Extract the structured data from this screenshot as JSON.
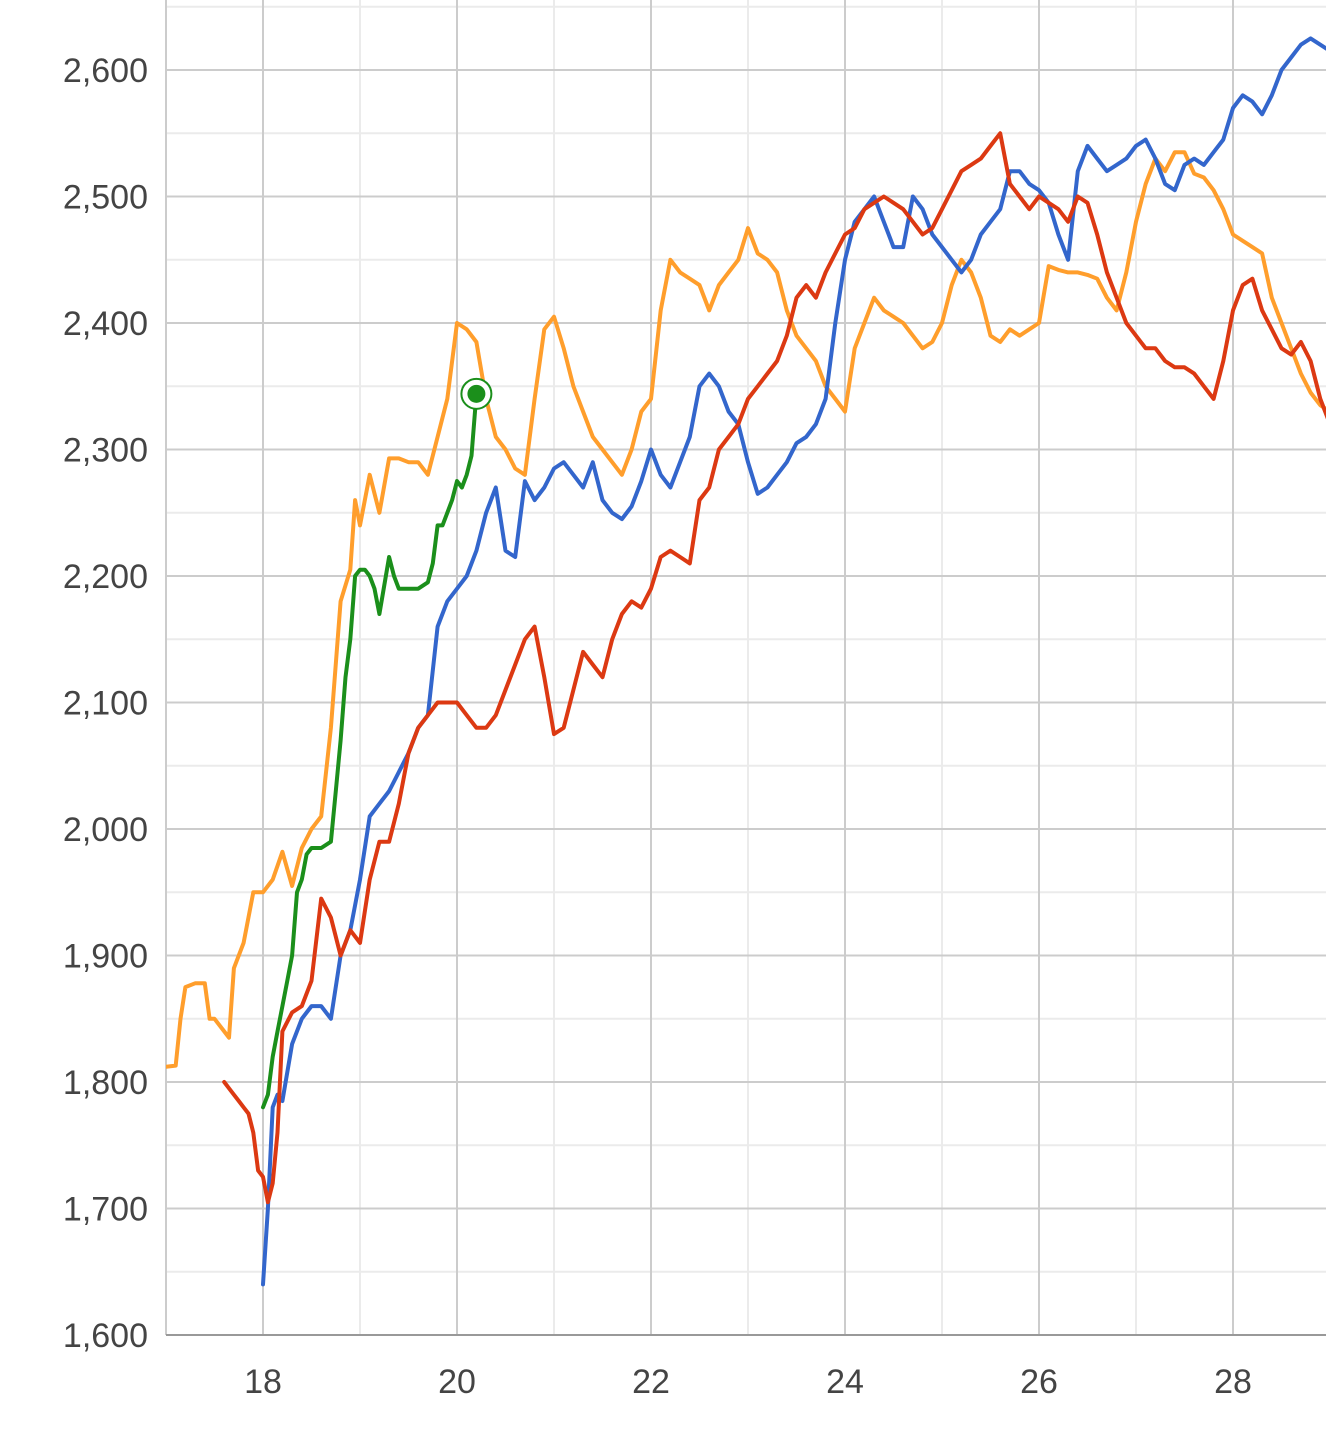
{
  "chart_data": {
    "type": "line",
    "title": "",
    "xlabel": "",
    "ylabel": "",
    "xlim": [
      17,
      29
    ],
    "ylim": [
      1600,
      2650
    ],
    "x_ticks": [
      18,
      20,
      22,
      24,
      26,
      28
    ],
    "x_tick_labels": [
      "18",
      "20",
      "22",
      "24",
      "26",
      "28"
    ],
    "y_ticks": [
      1600,
      1700,
      1800,
      1900,
      2000,
      2100,
      2200,
      2300,
      2400,
      2500,
      2600
    ],
    "y_tick_labels": [
      "1,600",
      "1,700",
      "1,800",
      "1,900",
      "2,000",
      "2,100",
      "2,200",
      "2,300",
      "2,400",
      "2,500",
      "2,600"
    ],
    "grid": true,
    "legend": "none",
    "series": [
      {
        "color": "#ff9e2c",
        "x": [
          17.0,
          17.1,
          17.15,
          17.2,
          17.3,
          17.4,
          17.45,
          17.5,
          17.6,
          17.65,
          17.7,
          17.8,
          17.9,
          18.0,
          18.1,
          18.2,
          18.3,
          18.4,
          18.5,
          18.6,
          18.7,
          18.8,
          18.9,
          18.95,
          19.0,
          19.1,
          19.2,
          19.3,
          19.4,
          19.5,
          19.6,
          19.7,
          19.8,
          19.9,
          20.0,
          20.1,
          20.2,
          20.3,
          20.4,
          20.5,
          20.6,
          20.7,
          20.8,
          20.9,
          21.0,
          21.1,
          21.2,
          21.3,
          21.4,
          21.5,
          21.6,
          21.7,
          21.8,
          21.9,
          22.0,
          22.1,
          22.2,
          22.3,
          22.4,
          22.5,
          22.6,
          22.7,
          22.8,
          22.9,
          23.0,
          23.1,
          23.2,
          23.3,
          23.4,
          23.5,
          23.6,
          23.7,
          23.8,
          23.9,
          24.0,
          24.1,
          24.2,
          24.3,
          24.4,
          24.5,
          24.6,
          24.7,
          24.8,
          24.9,
          25.0,
          25.1,
          25.2,
          25.3,
          25.4,
          25.5,
          25.6,
          25.7,
          25.8,
          25.9,
          26.0,
          26.1,
          26.2,
          26.3,
          26.4,
          26.5,
          26.6,
          26.7,
          26.8,
          26.9,
          27.0,
          27.1,
          27.2,
          27.3,
          27.4,
          27.5,
          27.6,
          27.7,
          27.8,
          27.9,
          28.0,
          28.1,
          28.2,
          28.3,
          28.4,
          28.5,
          28.6,
          28.7,
          28.8,
          28.9,
          29.0
        ],
        "y": [
          1812,
          1813,
          1850,
          1875,
          1878,
          1878,
          1850,
          1850,
          1840,
          1835,
          1890,
          1910,
          1950,
          1950,
          1960,
          1982,
          1955,
          1985,
          2000,
          2010,
          2080,
          2180,
          2205,
          2260,
          2240,
          2280,
          2250,
          2293,
          2293,
          2290,
          2290,
          2280,
          2310,
          2340,
          2400,
          2395,
          2385,
          2340,
          2310,
          2300,
          2285,
          2280,
          2340,
          2395,
          2405,
          2380,
          2350,
          2330,
          2310,
          2300,
          2290,
          2280,
          2300,
          2330,
          2340,
          2410,
          2450,
          2440,
          2435,
          2430,
          2410,
          2430,
          2440,
          2450,
          2475,
          2455,
          2450,
          2440,
          2410,
          2390,
          2380,
          2370,
          2350,
          2340,
          2330,
          2380,
          2400,
          2420,
          2410,
          2405,
          2400,
          2390,
          2380,
          2385,
          2400,
          2430,
          2450,
          2440,
          2420,
          2390,
          2385,
          2395,
          2390,
          2395,
          2400,
          2445,
          2442,
          2440,
          2440,
          2438,
          2435,
          2420,
          2410,
          2440,
          2480,
          2510,
          2530,
          2520,
          2535,
          2535,
          2518,
          2515,
          2505,
          2490,
          2470,
          2465,
          2460,
          2455,
          2420,
          2400,
          2380,
          2360,
          2345,
          2335,
          2330
        ]
      },
      {
        "color": "#1b8f1b",
        "x": [
          18.0,
          18.05,
          18.1,
          18.15,
          18.2,
          18.25,
          18.3,
          18.35,
          18.4,
          18.45,
          18.5,
          18.6,
          18.7,
          18.75,
          18.8,
          18.85,
          18.9,
          18.95,
          19.0,
          19.05,
          19.1,
          19.15,
          19.2,
          19.3,
          19.35,
          19.4,
          19.45,
          19.5,
          19.6,
          19.7,
          19.75,
          19.8,
          19.85,
          19.9,
          19.95,
          20.0,
          20.05,
          20.1,
          20.15,
          20.2
        ],
        "y": [
          1780,
          1790,
          1820,
          1840,
          1860,
          1880,
          1900,
          1950,
          1960,
          1980,
          1985,
          1985,
          1990,
          2030,
          2070,
          2120,
          2150,
          2200,
          2205,
          2205,
          2200,
          2190,
          2170,
          2215,
          2200,
          2190,
          2190,
          2190,
          2190,
          2195,
          2210,
          2240,
          2240,
          2250,
          2260,
          2275,
          2270,
          2280,
          2295,
          2344
        ]
      },
      {
        "color": "#3366cc",
        "x": [
          18.0,
          18.05,
          18.1,
          18.15,
          18.2,
          18.3,
          18.4,
          18.5,
          18.6,
          18.7,
          18.8,
          18.9,
          19.0,
          19.1,
          19.2,
          19.3,
          19.4,
          19.5,
          19.6,
          19.7,
          19.8,
          19.9,
          20.0,
          20.1,
          20.2,
          20.3,
          20.4,
          20.5,
          20.6,
          20.7,
          20.8,
          20.9,
          21.0,
          21.1,
          21.2,
          21.3,
          21.4,
          21.5,
          21.6,
          21.7,
          21.8,
          21.9,
          22.0,
          22.1,
          22.2,
          22.3,
          22.4,
          22.5,
          22.6,
          22.7,
          22.8,
          22.9,
          23.0,
          23.1,
          23.2,
          23.3,
          23.4,
          23.5,
          23.6,
          23.7,
          23.8,
          23.9,
          24.0,
          24.1,
          24.2,
          24.3,
          24.4,
          24.5,
          24.6,
          24.7,
          24.8,
          24.9,
          25.0,
          25.1,
          25.2,
          25.3,
          25.4,
          25.5,
          25.6,
          25.7,
          25.8,
          25.9,
          26.0,
          26.1,
          26.2,
          26.3,
          26.4,
          26.5,
          26.6,
          26.7,
          26.8,
          26.9,
          27.0,
          27.1,
          27.2,
          27.3,
          27.4,
          27.5,
          27.6,
          27.7,
          27.8,
          27.9,
          28.0,
          28.1,
          28.2,
          28.3,
          28.4,
          28.5,
          28.6,
          28.7,
          28.8,
          28.9,
          29.0
        ],
        "y": [
          1640,
          1700,
          1780,
          1790,
          1785,
          1830,
          1850,
          1860,
          1860,
          1850,
          1900,
          1920,
          1960,
          2010,
          2020,
          2030,
          2045,
          2060,
          2080,
          2090,
          2160,
          2180,
          2190,
          2200,
          2220,
          2250,
          2270,
          2220,
          2215,
          2275,
          2260,
          2270,
          2285,
          2290,
          2280,
          2270,
          2290,
          2260,
          2250,
          2245,
          2255,
          2275,
          2300,
          2280,
          2270,
          2290,
          2310,
          2350,
          2360,
          2350,
          2330,
          2320,
          2290,
          2265,
          2270,
          2280,
          2290,
          2305,
          2310,
          2320,
          2340,
          2400,
          2450,
          2480,
          2490,
          2500,
          2480,
          2460,
          2460,
          2500,
          2490,
          2470,
          2460,
          2450,
          2440,
          2450,
          2470,
          2480,
          2490,
          2520,
          2520,
          2510,
          2505,
          2495,
          2470,
          2450,
          2520,
          2540,
          2530,
          2520,
          2525,
          2530,
          2540,
          2545,
          2530,
          2510,
          2505,
          2525,
          2530,
          2525,
          2535,
          2545,
          2570,
          2580,
          2575,
          2565,
          2580,
          2600,
          2610,
          2620,
          2625,
          2620,
          2615
        ]
      },
      {
        "color": "#dc3912",
        "x": [
          17.6,
          17.65,
          17.7,
          17.75,
          17.8,
          17.85,
          17.9,
          17.95,
          18.0,
          18.05,
          18.1,
          18.15,
          18.2,
          18.3,
          18.4,
          18.5,
          18.6,
          18.7,
          18.8,
          18.9,
          19.0,
          19.1,
          19.2,
          19.3,
          19.4,
          19.5,
          19.6,
          19.7,
          19.8,
          19.9,
          20.0,
          20.1,
          20.2,
          20.3,
          20.4,
          20.5,
          20.6,
          20.7,
          20.8,
          20.9,
          21.0,
          21.1,
          21.2,
          21.3,
          21.4,
          21.5,
          21.6,
          21.7,
          21.8,
          21.9,
          22.0,
          22.1,
          22.2,
          22.3,
          22.4,
          22.5,
          22.6,
          22.7,
          22.8,
          22.9,
          23.0,
          23.1,
          23.2,
          23.3,
          23.4,
          23.5,
          23.6,
          23.7,
          23.8,
          23.9,
          24.0,
          24.1,
          24.2,
          24.3,
          24.4,
          24.5,
          24.6,
          24.7,
          24.8,
          24.9,
          25.0,
          25.1,
          25.2,
          25.3,
          25.4,
          25.5,
          25.6,
          25.7,
          25.8,
          25.9,
          26.0,
          26.1,
          26.2,
          26.3,
          26.4,
          26.5,
          26.6,
          26.7,
          26.8,
          26.9,
          27.0,
          27.1,
          27.2,
          27.3,
          27.4,
          27.5,
          27.6,
          27.7,
          27.8,
          27.9,
          28.0,
          28.1,
          28.2,
          28.3,
          28.4,
          28.5,
          28.6,
          28.7,
          28.8,
          28.9,
          29.0
        ],
        "y": [
          1800,
          1795,
          1790,
          1785,
          1780,
          1775,
          1760,
          1730,
          1725,
          1705,
          1720,
          1760,
          1840,
          1855,
          1860,
          1880,
          1945,
          1930,
          1900,
          1920,
          1910,
          1960,
          1990,
          1990,
          2020,
          2060,
          2080,
          2090,
          2100,
          2100,
          2100,
          2090,
          2080,
          2080,
          2090,
          2110,
          2130,
          2150,
          2160,
          2120,
          2075,
          2080,
          2110,
          2140,
          2130,
          2120,
          2150,
          2170,
          2180,
          2175,
          2190,
          2215,
          2220,
          2215,
          2210,
          2260,
          2270,
          2300,
          2310,
          2320,
          2340,
          2350,
          2360,
          2370,
          2390,
          2420,
          2430,
          2420,
          2440,
          2455,
          2470,
          2475,
          2490,
          2495,
          2500,
          2495,
          2490,
          2480,
          2470,
          2475,
          2490,
          2505,
          2520,
          2525,
          2530,
          2540,
          2550,
          2510,
          2500,
          2490,
          2500,
          2495,
          2490,
          2480,
          2500,
          2495,
          2470,
          2440,
          2420,
          2400,
          2390,
          2380,
          2380,
          2370,
          2365,
          2365,
          2360,
          2350,
          2340,
          2370,
          2410,
          2430,
          2435,
          2410,
          2395,
          2380,
          2375,
          2385,
          2370,
          2340,
          2320
        ]
      }
    ],
    "highlight_point": {
      "series_color": "#1b8f1b",
      "x": 20.2,
      "y": 2344
    }
  }
}
